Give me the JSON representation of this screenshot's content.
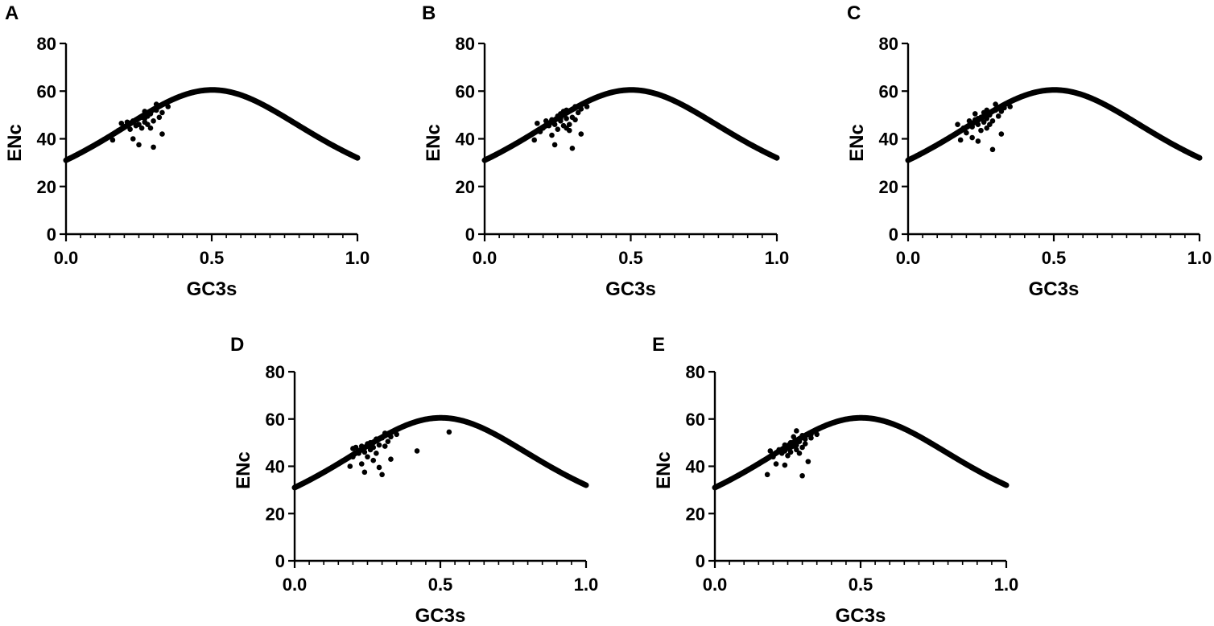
{
  "colors": {
    "curve": "#000000",
    "points": "#000000",
    "axes": "#000000",
    "background": "#ffffff"
  },
  "chart_data": [
    {
      "panel": "A",
      "type": "scatter",
      "xlabel": "GC3s",
      "ylabel": "ENc",
      "xlim": [
        0,
        1
      ],
      "ylim": [
        0,
        80
      ],
      "xticks": [
        "0.0",
        "0.5",
        "1.0"
      ],
      "yticks": [
        "0",
        "20",
        "40",
        "60",
        "80"
      ],
      "expected_curve": "ENc = 2 + GC3s + 29/(GC3s^2 + (1-GC3s)^2)",
      "points": [
        [
          0.16,
          39.5
        ],
        [
          0.18,
          43.5
        ],
        [
          0.19,
          46.5
        ],
        [
          0.2,
          45
        ],
        [
          0.21,
          47
        ],
        [
          0.22,
          44
        ],
        [
          0.22,
          46.5
        ],
        [
          0.23,
          47.5
        ],
        [
          0.23,
          40
        ],
        [
          0.24,
          48
        ],
        [
          0.24,
          45.5
        ],
        [
          0.25,
          37.5
        ],
        [
          0.25,
          46
        ],
        [
          0.26,
          49
        ],
        [
          0.26,
          44.5
        ],
        [
          0.27,
          51.5
        ],
        [
          0.27,
          47
        ],
        [
          0.28,
          46
        ],
        [
          0.28,
          49.5
        ],
        [
          0.29,
          44.5
        ],
        [
          0.29,
          50.5
        ],
        [
          0.3,
          47.5
        ],
        [
          0.3,
          36.5
        ],
        [
          0.31,
          52
        ],
        [
          0.31,
          54.5
        ],
        [
          0.32,
          49
        ],
        [
          0.33,
          51
        ],
        [
          0.33,
          42
        ],
        [
          0.35,
          53.5
        ],
        [
          0.27,
          48.5
        ]
      ]
    },
    {
      "panel": "B",
      "type": "scatter",
      "xlabel": "GC3s",
      "ylabel": "ENc",
      "xlim": [
        0,
        1
      ],
      "ylim": [
        0,
        80
      ],
      "xticks": [
        "0.0",
        "0.5",
        "1.0"
      ],
      "yticks": [
        "0",
        "20",
        "40",
        "60",
        "80"
      ],
      "expected_curve": "ENc = 2 + GC3s + 29/(GC3s^2 + (1-GC3s)^2)",
      "points": [
        [
          0.17,
          39.5
        ],
        [
          0.18,
          46.5
        ],
        [
          0.19,
          43
        ],
        [
          0.2,
          44.5
        ],
        [
          0.21,
          47.5
        ],
        [
          0.22,
          45.5
        ],
        [
          0.23,
          41.5
        ],
        [
          0.23,
          48
        ],
        [
          0.24,
          37.5
        ],
        [
          0.24,
          46
        ],
        [
          0.25,
          49.5
        ],
        [
          0.25,
          44
        ],
        [
          0.26,
          50.5
        ],
        [
          0.26,
          47.5
        ],
        [
          0.27,
          51.5
        ],
        [
          0.27,
          45.5
        ],
        [
          0.28,
          48.5
        ],
        [
          0.28,
          52
        ],
        [
          0.29,
          43.5
        ],
        [
          0.29,
          46
        ],
        [
          0.3,
          49
        ],
        [
          0.3,
          36
        ],
        [
          0.31,
          53.5
        ],
        [
          0.31,
          48
        ],
        [
          0.32,
          51
        ],
        [
          0.33,
          42
        ],
        [
          0.33,
          52.5
        ],
        [
          0.35,
          53.5
        ],
        [
          0.26,
          48.5
        ],
        [
          0.28,
          44.5
        ]
      ]
    },
    {
      "panel": "C",
      "type": "scatter",
      "xlabel": "GC3s",
      "ylabel": "ENc",
      "xlim": [
        0,
        1
      ],
      "ylim": [
        0,
        80
      ],
      "xticks": [
        "0.0",
        "0.5",
        "1.0"
      ],
      "yticks": [
        "0",
        "20",
        "40",
        "60",
        "80"
      ],
      "expected_curve": "ENc = 2 + GC3s + 29/(GC3s^2 + (1-GC3s)^2)",
      "points": [
        [
          0.17,
          46
        ],
        [
          0.18,
          39.5
        ],
        [
          0.19,
          44.5
        ],
        [
          0.2,
          42.5
        ],
        [
          0.21,
          47.5
        ],
        [
          0.22,
          45
        ],
        [
          0.22,
          40.5
        ],
        [
          0.23,
          48
        ],
        [
          0.23,
          50.5
        ],
        [
          0.24,
          39
        ],
        [
          0.24,
          46
        ],
        [
          0.25,
          49
        ],
        [
          0.25,
          43.5
        ],
        [
          0.26,
          51
        ],
        [
          0.26,
          47
        ],
        [
          0.27,
          48.5
        ],
        [
          0.27,
          44.5
        ],
        [
          0.28,
          50
        ],
        [
          0.28,
          46
        ],
        [
          0.29,
          35.5
        ],
        [
          0.29,
          47.5
        ],
        [
          0.3,
          52
        ],
        [
          0.3,
          54.5
        ],
        [
          0.31,
          49.5
        ],
        [
          0.32,
          51.5
        ],
        [
          0.32,
          42
        ],
        [
          0.33,
          53
        ],
        [
          0.35,
          53.5
        ],
        [
          0.24,
          48.5
        ],
        [
          0.27,
          52
        ]
      ]
    },
    {
      "panel": "D",
      "type": "scatter",
      "xlabel": "GC3s",
      "ylabel": "ENc",
      "xlim": [
        0,
        1
      ],
      "ylim": [
        0,
        80
      ],
      "xticks": [
        "0.0",
        "0.5",
        "1.0"
      ],
      "yticks": [
        "0",
        "20",
        "40",
        "60",
        "80"
      ],
      "expected_curve": "ENc = 2 + GC3s + 29/(GC3s^2 + (1-GC3s)^2)",
      "points": [
        [
          0.19,
          40
        ],
        [
          0.2,
          47.5
        ],
        [
          0.2,
          44
        ],
        [
          0.21,
          48
        ],
        [
          0.22,
          45.5
        ],
        [
          0.23,
          41
        ],
        [
          0.23,
          48.5
        ],
        [
          0.24,
          37.5
        ],
        [
          0.24,
          46
        ],
        [
          0.25,
          49.5
        ],
        [
          0.25,
          44
        ],
        [
          0.26,
          50
        ],
        [
          0.26,
          47
        ],
        [
          0.27,
          48
        ],
        [
          0.27,
          42.5
        ],
        [
          0.28,
          51.5
        ],
        [
          0.28,
          45.5
        ],
        [
          0.29,
          39.5
        ],
        [
          0.29,
          49
        ],
        [
          0.3,
          36.5
        ],
        [
          0.3,
          52
        ],
        [
          0.31,
          54
        ],
        [
          0.31,
          48.5
        ],
        [
          0.32,
          50.5
        ],
        [
          0.33,
          43
        ],
        [
          0.33,
          52.5
        ],
        [
          0.35,
          53.5
        ],
        [
          0.42,
          46.5
        ],
        [
          0.53,
          54.5
        ],
        [
          0.27,
          50
        ]
      ]
    },
    {
      "panel": "E",
      "type": "scatter",
      "xlabel": "GC3s",
      "ylabel": "ENc",
      "xlim": [
        0,
        1
      ],
      "ylim": [
        0,
        80
      ],
      "xticks": [
        "0.0",
        "0.5",
        "1.0"
      ],
      "yticks": [
        "0",
        "20",
        "40",
        "60",
        "80"
      ],
      "expected_curve": "ENc = 2 + GC3s + 29/(GC3s^2 + (1-GC3s)^2)",
      "points": [
        [
          0.18,
          36.5
        ],
        [
          0.19,
          46.5
        ],
        [
          0.2,
          44
        ],
        [
          0.21,
          41
        ],
        [
          0.22,
          47
        ],
        [
          0.23,
          45.5
        ],
        [
          0.24,
          40.5
        ],
        [
          0.24,
          49
        ],
        [
          0.25,
          47.5
        ],
        [
          0.25,
          44.5
        ],
        [
          0.26,
          50
        ],
        [
          0.26,
          46
        ],
        [
          0.27,
          48.5
        ],
        [
          0.27,
          52.5
        ],
        [
          0.28,
          55
        ],
        [
          0.28,
          47
        ],
        [
          0.29,
          50.5
        ],
        [
          0.29,
          45.5
        ],
        [
          0.3,
          36
        ],
        [
          0.3,
          53
        ],
        [
          0.31,
          49.5
        ],
        [
          0.31,
          51.5
        ],
        [
          0.32,
          42
        ],
        [
          0.33,
          52
        ],
        [
          0.33,
          53.5
        ],
        [
          0.35,
          53.5
        ],
        [
          0.26,
          48
        ],
        [
          0.28,
          49
        ],
        [
          0.24,
          46.5
        ],
        [
          0.3,
          48
        ]
      ]
    }
  ]
}
